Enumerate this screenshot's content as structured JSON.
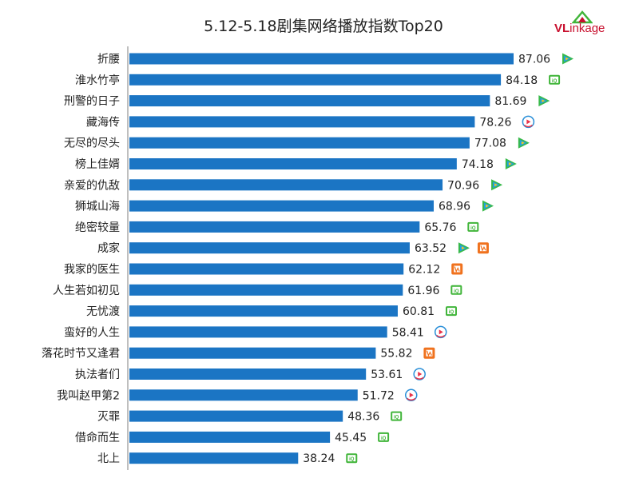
{
  "logo": {
    "brand_prefix": "VL",
    "brand_rest": "inkage"
  },
  "colors": {
    "bar": "#1b75c4",
    "axis": "#7f7f7f",
    "tencent_green": "#38b94a",
    "tencent_blue": "#1ea0e0",
    "tencent_yellow": "#f5c623",
    "iqiyi": "#41b53a",
    "youku_red": "#e8334a",
    "youku_blue": "#2a8fd8",
    "mango": "#f0721e",
    "logo_red": "#c8102e"
  },
  "chart_data": {
    "type": "bar",
    "orientation": "horizontal",
    "title": "5.12-5.18剧集网络播放指数Top20",
    "xlabel": "",
    "ylabel": "",
    "xlim": [
      0,
      100
    ],
    "grid": false,
    "legend": "none",
    "categories": [
      "折腰",
      "淮水竹亭",
      "刑警的日子",
      "藏海传",
      "无尽的尽头",
      "榜上佳婿",
      "亲爱的仇敌",
      "狮城山海",
      "绝密较量",
      "成家",
      "我家的医生",
      "人生若如初见",
      "无忧渡",
      "蛮好的人生",
      "落花时节又逢君",
      "执法者们",
      "我叫赵甲第2",
      "灭罪",
      "借命而生",
      "北上"
    ],
    "values": [
      87.06,
      84.18,
      81.69,
      78.26,
      77.08,
      74.18,
      70.96,
      68.96,
      65.76,
      63.52,
      62.12,
      61.96,
      60.81,
      58.41,
      55.82,
      53.61,
      51.72,
      48.36,
      45.45,
      38.24
    ],
    "value_labels": [
      "87.06",
      "84.18",
      "81.69",
      "78.26",
      "77.08",
      "74.18",
      "70.96",
      "68.96",
      "65.76",
      "63.52",
      "62.12",
      "61.96",
      "60.81",
      "58.41",
      "55.82",
      "53.61",
      "51.72",
      "48.36",
      "45.45",
      "38.24"
    ],
    "platforms": [
      [
        "tencent-video-icon"
      ],
      [
        "iqiyi-icon"
      ],
      [
        "tencent-video-icon"
      ],
      [
        "youku-icon"
      ],
      [
        "tencent-video-icon"
      ],
      [
        "tencent-video-icon"
      ],
      [
        "tencent-video-icon"
      ],
      [
        "tencent-video-icon"
      ],
      [
        "iqiyi-icon"
      ],
      [
        "tencent-video-icon",
        "mango-tv-icon"
      ],
      [
        "mango-tv-icon"
      ],
      [
        "iqiyi-icon"
      ],
      [
        "iqiyi-icon"
      ],
      [
        "youku-icon"
      ],
      [
        "mango-tv-icon"
      ],
      [
        "youku-icon"
      ],
      [
        "youku-icon"
      ],
      [
        "iqiyi-icon"
      ],
      [
        "iqiyi-icon"
      ],
      [
        "iqiyi-icon"
      ]
    ]
  }
}
